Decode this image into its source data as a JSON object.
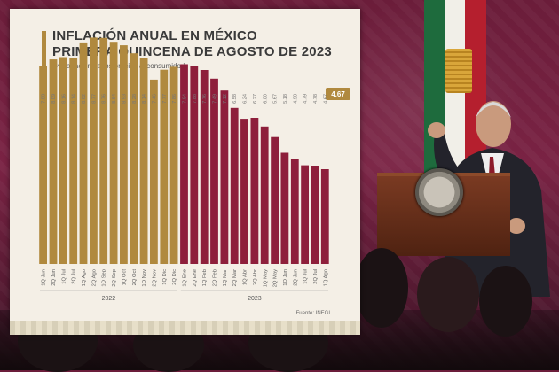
{
  "chart_data": {
    "type": "bar",
    "title_line1": "INFLACIÓN ANUAL EN MÉXICO",
    "title_line2": "PRIMERA QUINCENA DE AGOSTO DE 2023",
    "subtitle": "(% variación de los precios al consumidor)",
    "source": "Fuente: INEGI",
    "categories": [
      "1Q Jun",
      "2Q Jun",
      "1Q Jul",
      "2Q Jul",
      "1Q Ago",
      "2Q Ago",
      "1Q Sep",
      "2Q Sep",
      "1Q Oct",
      "2Q Oct",
      "1Q Nov",
      "2Q Nov",
      "1Q Dic",
      "2Q Dic",
      "1Q Ene",
      "2Q Ene",
      "1Q Feb",
      "2Q Feb",
      "1Q Mar",
      "2Q Mar",
      "1Q Abr",
      "2Q Abr",
      "1Q May",
      "2Q May",
      "1Q Jun",
      "2Q Jun",
      "1Q Jul",
      "2Q Jul",
      "1Q Ago"
    ],
    "values": [
      7.88,
      8.09,
      8.16,
      8.14,
      8.62,
      8.77,
      8.76,
      8.64,
      8.53,
      8.28,
      8.14,
      7.46,
      7.77,
      7.86,
      7.94,
      7.88,
      7.76,
      7.49,
      7.12,
      6.58,
      6.24,
      6.27,
      6.0,
      5.67,
      5.18,
      4.98,
      4.79,
      4.78,
      4.67
    ],
    "year_groups": [
      {
        "label": "2022",
        "start": 0,
        "end": 13,
        "color": "#b0893e"
      },
      {
        "label": "2023",
        "start": 14,
        "end": 28,
        "color": "#8e1f3b"
      }
    ],
    "highlight_value": "4.67",
    "ylim": [
      0,
      9.5
    ]
  }
}
